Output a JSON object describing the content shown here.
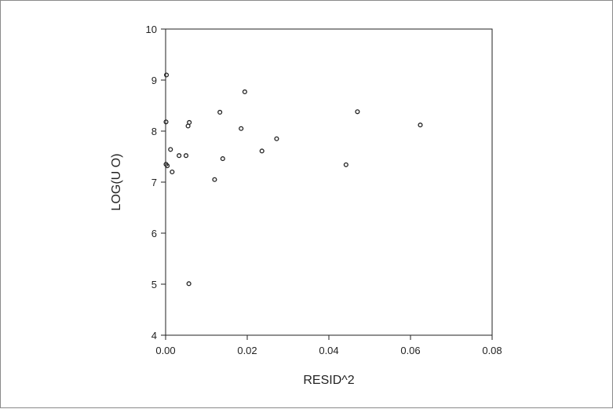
{
  "chart_data": {
    "type": "scatter",
    "title": "",
    "xlabel": "RESID^2",
    "ylabel": "LOG(U O)",
    "xlim": [
      0.0,
      0.08
    ],
    "ylim": [
      4,
      10
    ],
    "xticks": [
      0.0,
      0.02,
      0.04,
      0.06,
      0.08
    ],
    "xtick_labels": [
      "0.00",
      "0.02",
      "0.04",
      "0.06",
      "0.08"
    ],
    "yticks": [
      4,
      5,
      6,
      7,
      8,
      9,
      10
    ],
    "ytick_labels": [
      "4",
      "5",
      "6",
      "7",
      "8",
      "9",
      "10"
    ],
    "grid": false,
    "marker": "open-circle",
    "marker_color": "#222222",
    "points": [
      {
        "x": 0.0002,
        "y": 9.1
      },
      {
        "x": 0.0001,
        "y": 8.18
      },
      {
        "x": 0.0001,
        "y": 7.35
      },
      {
        "x": 0.0004,
        "y": 7.32
      },
      {
        "x": 0.0012,
        "y": 7.64
      },
      {
        "x": 0.0016,
        "y": 7.2
      },
      {
        "x": 0.0033,
        "y": 7.52
      },
      {
        "x": 0.005,
        "y": 7.52
      },
      {
        "x": 0.0055,
        "y": 8.1
      },
      {
        "x": 0.0058,
        "y": 8.17
      },
      {
        "x": 0.0057,
        "y": 5.01
      },
      {
        "x": 0.012,
        "y": 7.05
      },
      {
        "x": 0.0133,
        "y": 8.37
      },
      {
        "x": 0.014,
        "y": 7.46
      },
      {
        "x": 0.0185,
        "y": 8.05
      },
      {
        "x": 0.0194,
        "y": 8.77
      },
      {
        "x": 0.0236,
        "y": 7.61
      },
      {
        "x": 0.0272,
        "y": 7.85
      },
      {
        "x": 0.0442,
        "y": 7.34
      },
      {
        "x": 0.047,
        "y": 8.38
      },
      {
        "x": 0.0624,
        "y": 8.12
      }
    ]
  }
}
